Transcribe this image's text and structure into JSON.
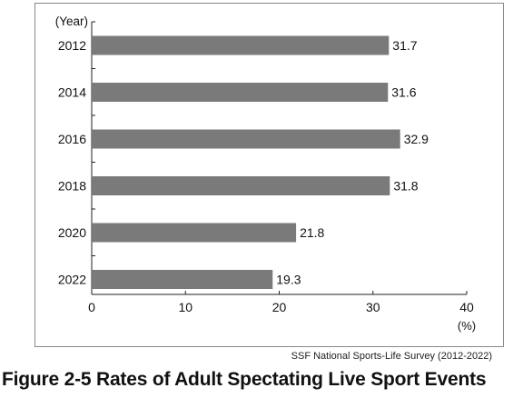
{
  "chart_data": {
    "type": "bar",
    "orientation": "horizontal",
    "categories": [
      "2012",
      "2014",
      "2016",
      "2018",
      "2020",
      "2022"
    ],
    "values": [
      31.7,
      31.6,
      32.9,
      31.8,
      21.8,
      19.3
    ],
    "ylabel": "(Year)",
    "xlabel": "(%)",
    "xlim": [
      0,
      40
    ],
    "xticks": [
      "0",
      "10",
      "20",
      "30",
      "40"
    ],
    "bar_color": "#7a7a7a",
    "grid": false
  },
  "source": "SSF National Sports-Life Survey (2012-2022)",
  "caption": "Figure 2-5  Rates of Adult Spectating Live Sport Events"
}
